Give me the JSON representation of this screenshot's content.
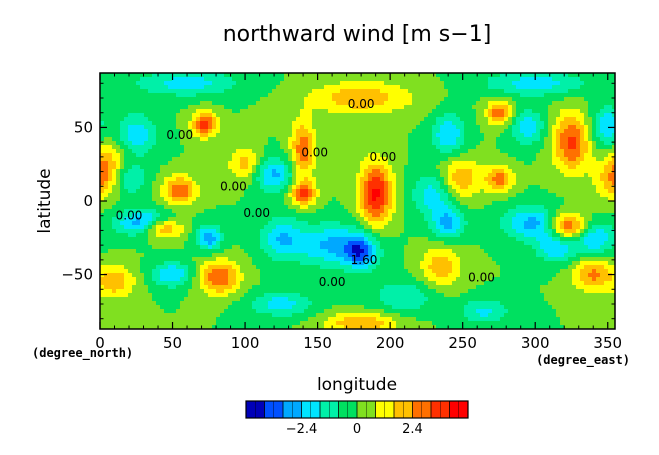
{
  "chart_data": {
    "type": "heatmap",
    "title": "northward wind [m s−1]",
    "xlabel": "longitude",
    "ylabel": "latitude",
    "xlim": [
      0,
      355
    ],
    "ylim": [
      -87,
      87
    ],
    "x_ticks": [
      0,
      50,
      100,
      150,
      200,
      250,
      300,
      350
    ],
    "x_tick_labels": [
      "0",
      "50",
      "100",
      "150",
      "200",
      "250",
      "300",
      "350"
    ],
    "y_ticks": [
      -50,
      0,
      50
    ],
    "y_tick_labels": [
      "−50",
      "0",
      "50"
    ],
    "x_unit_label": "(degree_east)",
    "y_unit_label": "(degree_north)",
    "contour_labels": [
      {
        "text": "0.00",
        "x": 20,
        "y": -10
      },
      {
        "text": "0.00",
        "x": 55,
        "y": 45
      },
      {
        "text": "0.00",
        "x": 92,
        "y": 10
      },
      {
        "text": "0.00",
        "x": 108,
        "y": -8
      },
      {
        "text": "0.00",
        "x": 180,
        "y": 66
      },
      {
        "text": "0.00",
        "x": 148,
        "y": 33
      },
      {
        "text": "0.00",
        "x": 195,
        "y": 30
      },
      {
        "text": "0.00",
        "x": 160,
        "y": -55
      },
      {
        "text": "0.00",
        "x": 263,
        "y": -52
      },
      {
        "text": "1.60",
        "x": 182,
        "y": -40
      }
    ],
    "blobs": [
      {
        "x": 72,
        "y": 52,
        "v": 3.6,
        "rx": 6,
        "ry": 6
      },
      {
        "x": 43,
        "y": -18,
        "v": 3.8,
        "rx": 10,
        "ry": 5
      },
      {
        "x": 55,
        "y": 7,
        "v": 3.2,
        "rx": 8,
        "ry": 7
      },
      {
        "x": 82,
        "y": -52,
        "v": 3.2,
        "rx": 10,
        "ry": 8
      },
      {
        "x": 140,
        "y": 35,
        "v": 3.0,
        "rx": 6,
        "ry": 14
      },
      {
        "x": 140,
        "y": 5,
        "v": 3.4,
        "rx": 6,
        "ry": 6
      },
      {
        "x": 190,
        "y": 5,
        "v": 4.2,
        "rx": 8,
        "ry": 15
      },
      {
        "x": 180,
        "y": 70,
        "v": 2.2,
        "rx": 25,
        "ry": 8
      },
      {
        "x": 275,
        "y": 60,
        "v": 3.0,
        "rx": 6,
        "ry": 6
      },
      {
        "x": 275,
        "y": 15,
        "v": 2.8,
        "rx": 7,
        "ry": 6
      },
      {
        "x": 325,
        "y": 40,
        "v": 3.4,
        "rx": 9,
        "ry": 14
      },
      {
        "x": 322,
        "y": -18,
        "v": 4.5,
        "rx": 10,
        "ry": 7
      },
      {
        "x": 340,
        "y": -50,
        "v": 2.6,
        "rx": 10,
        "ry": 8
      },
      {
        "x": 10,
        "y": -55,
        "v": 2.2,
        "rx": 10,
        "ry": 8
      },
      {
        "x": 180,
        "y": -83,
        "v": 2.4,
        "rx": 18,
        "ry": 5
      },
      {
        "x": 235,
        "y": -45,
        "v": 2.2,
        "rx": 10,
        "ry": 10
      },
      {
        "x": 248,
        "y": 15,
        "v": 2.4,
        "rx": 10,
        "ry": 10
      },
      {
        "x": 100,
        "y": 25,
        "v": 2.0,
        "rx": 8,
        "ry": 8
      },
      {
        "x": 5,
        "y": 25,
        "v": 2.0,
        "rx": 10,
        "ry": 12
      },
      {
        "x": 355,
        "y": 15,
        "v": 2.0,
        "rx": 10,
        "ry": 10
      },
      {
        "x": 32,
        "y": -15,
        "v": -3.5,
        "rx": 14,
        "ry": 6
      },
      {
        "x": 75,
        "y": -25,
        "v": -3.0,
        "rx": 6,
        "ry": 6
      },
      {
        "x": 50,
        "y": -50,
        "v": -2.4,
        "rx": 10,
        "ry": 6
      },
      {
        "x": 160,
        "y": -30,
        "v": -2.6,
        "rx": 18,
        "ry": 10
      },
      {
        "x": 180,
        "y": -35,
        "v": -3.0,
        "rx": 8,
        "ry": 8
      },
      {
        "x": 120,
        "y": 18,
        "v": -2.6,
        "rx": 10,
        "ry": 8
      },
      {
        "x": 230,
        "y": 5,
        "v": -2.2,
        "rx": 10,
        "ry": 10
      },
      {
        "x": 240,
        "y": -15,
        "v": -2.6,
        "rx": 8,
        "ry": 8
      },
      {
        "x": 300,
        "y": -15,
        "v": -2.8,
        "rx": 15,
        "ry": 8
      },
      {
        "x": 315,
        "y": -30,
        "v": -2.6,
        "rx": 10,
        "ry": 8
      },
      {
        "x": 340,
        "y": -25,
        "v": -2.6,
        "rx": 10,
        "ry": 8
      },
      {
        "x": 350,
        "y": 50,
        "v": -2.4,
        "rx": 8,
        "ry": 10
      },
      {
        "x": 295,
        "y": 50,
        "v": -2.2,
        "rx": 8,
        "ry": 8
      },
      {
        "x": 240,
        "y": 45,
        "v": -2.4,
        "rx": 8,
        "ry": 10
      },
      {
        "x": 125,
        "y": -25,
        "v": -2.2,
        "rx": 10,
        "ry": 10
      },
      {
        "x": 25,
        "y": 45,
        "v": -2.2,
        "rx": 10,
        "ry": 10
      },
      {
        "x": 60,
        "y": 80,
        "v": -2.0,
        "rx": 25,
        "ry": 6
      },
      {
        "x": 300,
        "y": 80,
        "v": -2.0,
        "rx": 25,
        "ry": 6
      },
      {
        "x": 125,
        "y": -70,
        "v": -2.0,
        "rx": 15,
        "ry": 6
      },
      {
        "x": 210,
        "y": -65,
        "v": -1.6,
        "rx": 15,
        "ry": 8
      },
      {
        "x": 265,
        "y": -75,
        "v": -1.8,
        "rx": 12,
        "ry": 6
      },
      {
        "x": 20,
        "y": 15,
        "v": -2.0,
        "rx": 8,
        "ry": 8
      }
    ],
    "colorbar": {
      "ticks": [
        -2.4,
        0,
        2.4
      ],
      "tick_labels": [
        "−2.4",
        "0",
        "2.4"
      ],
      "levels": [
        -4.8,
        -4.0,
        -3.2,
        -2.4,
        -1.6,
        -0.8,
        0,
        0.8,
        1.6,
        2.4,
        3.2,
        4.0,
        4.8
      ],
      "colors": [
        "#0000b8",
        "#0050ff",
        "#00a8ff",
        "#00e4ff",
        "#00f0a8",
        "#00e060",
        "#80e020",
        "#ffff00",
        "#ffc000",
        "#ff7000",
        "#ff3000",
        "#ff0000"
      ]
    }
  }
}
